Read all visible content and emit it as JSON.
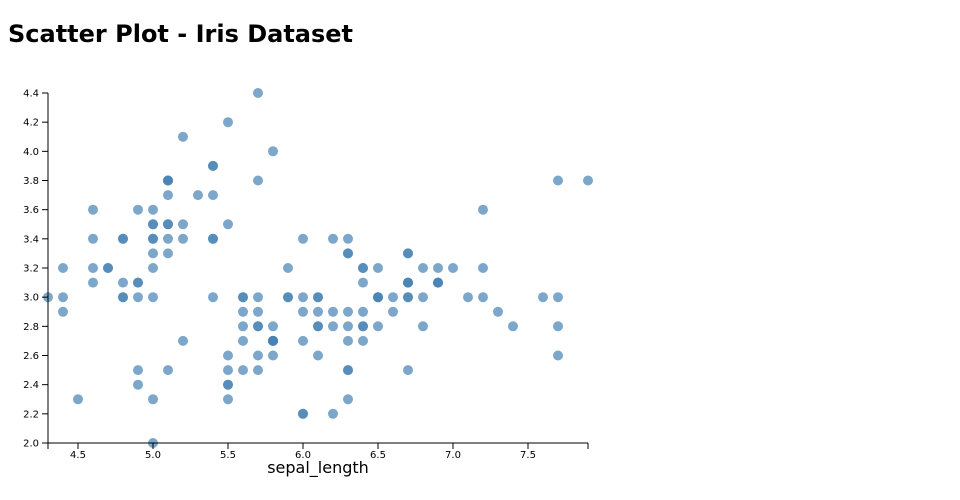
{
  "page": {
    "title": "Scatter Plot - Iris Dataset"
  },
  "chart_data": {
    "type": "scatter",
    "title": "Scatter Plot - Iris Dataset",
    "xlabel": "sepal_length",
    "ylabel": "",
    "xlim": [
      4.3,
      7.9
    ],
    "ylim": [
      2.0,
      4.4
    ],
    "x_ticks": [
      "4.5",
      "5.0",
      "5.5",
      "6.0",
      "6.5",
      "7.0",
      "7.5"
    ],
    "y_ticks": [
      "2.0",
      "2.2",
      "2.4",
      "2.6",
      "2.8",
      "3.0",
      "3.2",
      "3.4",
      "3.6",
      "3.8",
      "4.0",
      "4.2",
      "4.4"
    ],
    "grid": false,
    "color": "#4682b4",
    "points": [
      [
        5.1,
        3.5
      ],
      [
        4.9,
        3.0
      ],
      [
        4.7,
        3.2
      ],
      [
        4.6,
        3.1
      ],
      [
        5.0,
        3.6
      ],
      [
        5.4,
        3.9
      ],
      [
        4.6,
        3.4
      ],
      [
        5.0,
        3.4
      ],
      [
        4.4,
        2.9
      ],
      [
        4.9,
        3.1
      ],
      [
        5.4,
        3.7
      ],
      [
        4.8,
        3.4
      ],
      [
        4.8,
        3.0
      ],
      [
        4.3,
        3.0
      ],
      [
        5.8,
        4.0
      ],
      [
        5.7,
        4.4
      ],
      [
        5.4,
        3.9
      ],
      [
        5.1,
        3.5
      ],
      [
        5.7,
        3.8
      ],
      [
        5.1,
        3.8
      ],
      [
        5.4,
        3.4
      ],
      [
        5.1,
        3.7
      ],
      [
        4.6,
        3.6
      ],
      [
        5.1,
        3.3
      ],
      [
        4.8,
        3.4
      ],
      [
        5.0,
        3.0
      ],
      [
        5.0,
        3.4
      ],
      [
        5.2,
        3.5
      ],
      [
        5.2,
        3.4
      ],
      [
        4.7,
        3.2
      ],
      [
        4.8,
        3.1
      ],
      [
        5.4,
        3.4
      ],
      [
        5.2,
        4.1
      ],
      [
        5.5,
        4.2
      ],
      [
        4.9,
        3.1
      ],
      [
        5.0,
        3.2
      ],
      [
        5.5,
        3.5
      ],
      [
        4.9,
        3.6
      ],
      [
        4.4,
        3.0
      ],
      [
        5.1,
        3.4
      ],
      [
        5.0,
        3.5
      ],
      [
        4.5,
        2.3
      ],
      [
        4.4,
        3.2
      ],
      [
        5.0,
        3.5
      ],
      [
        5.1,
        3.8
      ],
      [
        4.8,
        3.0
      ],
      [
        5.1,
        3.8
      ],
      [
        4.6,
        3.2
      ],
      [
        5.3,
        3.7
      ],
      [
        5.0,
        3.3
      ],
      [
        7.0,
        3.2
      ],
      [
        6.4,
        3.2
      ],
      [
        6.9,
        3.1
      ],
      [
        5.5,
        2.3
      ],
      [
        6.5,
        2.8
      ],
      [
        5.7,
        2.8
      ],
      [
        6.3,
        3.3
      ],
      [
        4.9,
        2.4
      ],
      [
        6.6,
        2.9
      ],
      [
        5.2,
        2.7
      ],
      [
        5.0,
        2.0
      ],
      [
        5.9,
        3.0
      ],
      [
        6.0,
        2.2
      ],
      [
        6.1,
        2.9
      ],
      [
        5.6,
        2.9
      ],
      [
        6.7,
        3.1
      ],
      [
        5.6,
        3.0
      ],
      [
        5.8,
        2.7
      ],
      [
        6.2,
        2.2
      ],
      [
        5.6,
        2.5
      ],
      [
        5.9,
        3.2
      ],
      [
        6.1,
        2.8
      ],
      [
        6.3,
        2.5
      ],
      [
        6.1,
        2.8
      ],
      [
        6.4,
        2.9
      ],
      [
        6.6,
        3.0
      ],
      [
        6.8,
        2.8
      ],
      [
        6.7,
        3.0
      ],
      [
        6.0,
        2.9
      ],
      [
        5.7,
        2.6
      ],
      [
        5.5,
        2.4
      ],
      [
        5.5,
        2.4
      ],
      [
        5.8,
        2.7
      ],
      [
        6.0,
        2.7
      ],
      [
        5.4,
        3.0
      ],
      [
        6.0,
        3.4
      ],
      [
        6.7,
        3.1
      ],
      [
        6.3,
        2.3
      ],
      [
        5.6,
        3.0
      ],
      [
        5.5,
        2.5
      ],
      [
        5.5,
        2.6
      ],
      [
        6.1,
        3.0
      ],
      [
        5.8,
        2.6
      ],
      [
        5.0,
        2.3
      ],
      [
        5.6,
        2.7
      ],
      [
        5.7,
        3.0
      ],
      [
        5.7,
        2.9
      ],
      [
        6.2,
        2.9
      ],
      [
        5.1,
        2.5
      ],
      [
        5.7,
        2.8
      ],
      [
        6.3,
        3.3
      ],
      [
        5.8,
        2.7
      ],
      [
        7.1,
        3.0
      ],
      [
        6.3,
        2.9
      ],
      [
        6.5,
        3.0
      ],
      [
        7.6,
        3.0
      ],
      [
        4.9,
        2.5
      ],
      [
        7.3,
        2.9
      ],
      [
        6.7,
        2.5
      ],
      [
        7.2,
        3.6
      ],
      [
        6.5,
        3.2
      ],
      [
        6.4,
        2.7
      ],
      [
        6.8,
        3.0
      ],
      [
        5.7,
        2.5
      ],
      [
        5.8,
        2.8
      ],
      [
        6.4,
        3.2
      ],
      [
        6.5,
        3.0
      ],
      [
        7.7,
        3.8
      ],
      [
        7.7,
        2.6
      ],
      [
        6.0,
        2.2
      ],
      [
        6.9,
        3.2
      ],
      [
        5.6,
        2.8
      ],
      [
        7.7,
        2.8
      ],
      [
        6.3,
        2.7
      ],
      [
        6.7,
        3.3
      ],
      [
        7.2,
        3.2
      ],
      [
        6.2,
        2.8
      ],
      [
        6.1,
        3.0
      ],
      [
        6.4,
        2.8
      ],
      [
        7.2,
        3.0
      ],
      [
        7.4,
        2.8
      ],
      [
        7.9,
        3.8
      ],
      [
        6.4,
        2.8
      ],
      [
        6.3,
        2.8
      ],
      [
        6.1,
        2.6
      ],
      [
        7.7,
        3.0
      ],
      [
        6.3,
        3.4
      ],
      [
        6.4,
        3.1
      ],
      [
        6.0,
        3.0
      ],
      [
        6.9,
        3.1
      ],
      [
        6.7,
        3.1
      ],
      [
        6.9,
        3.1
      ],
      [
        5.8,
        2.7
      ],
      [
        6.8,
        3.2
      ],
      [
        6.7,
        3.3
      ],
      [
        6.7,
        3.0
      ],
      [
        6.3,
        2.5
      ],
      [
        6.5,
        3.0
      ],
      [
        6.2,
        3.4
      ],
      [
        5.9,
        3.0
      ]
    ]
  }
}
